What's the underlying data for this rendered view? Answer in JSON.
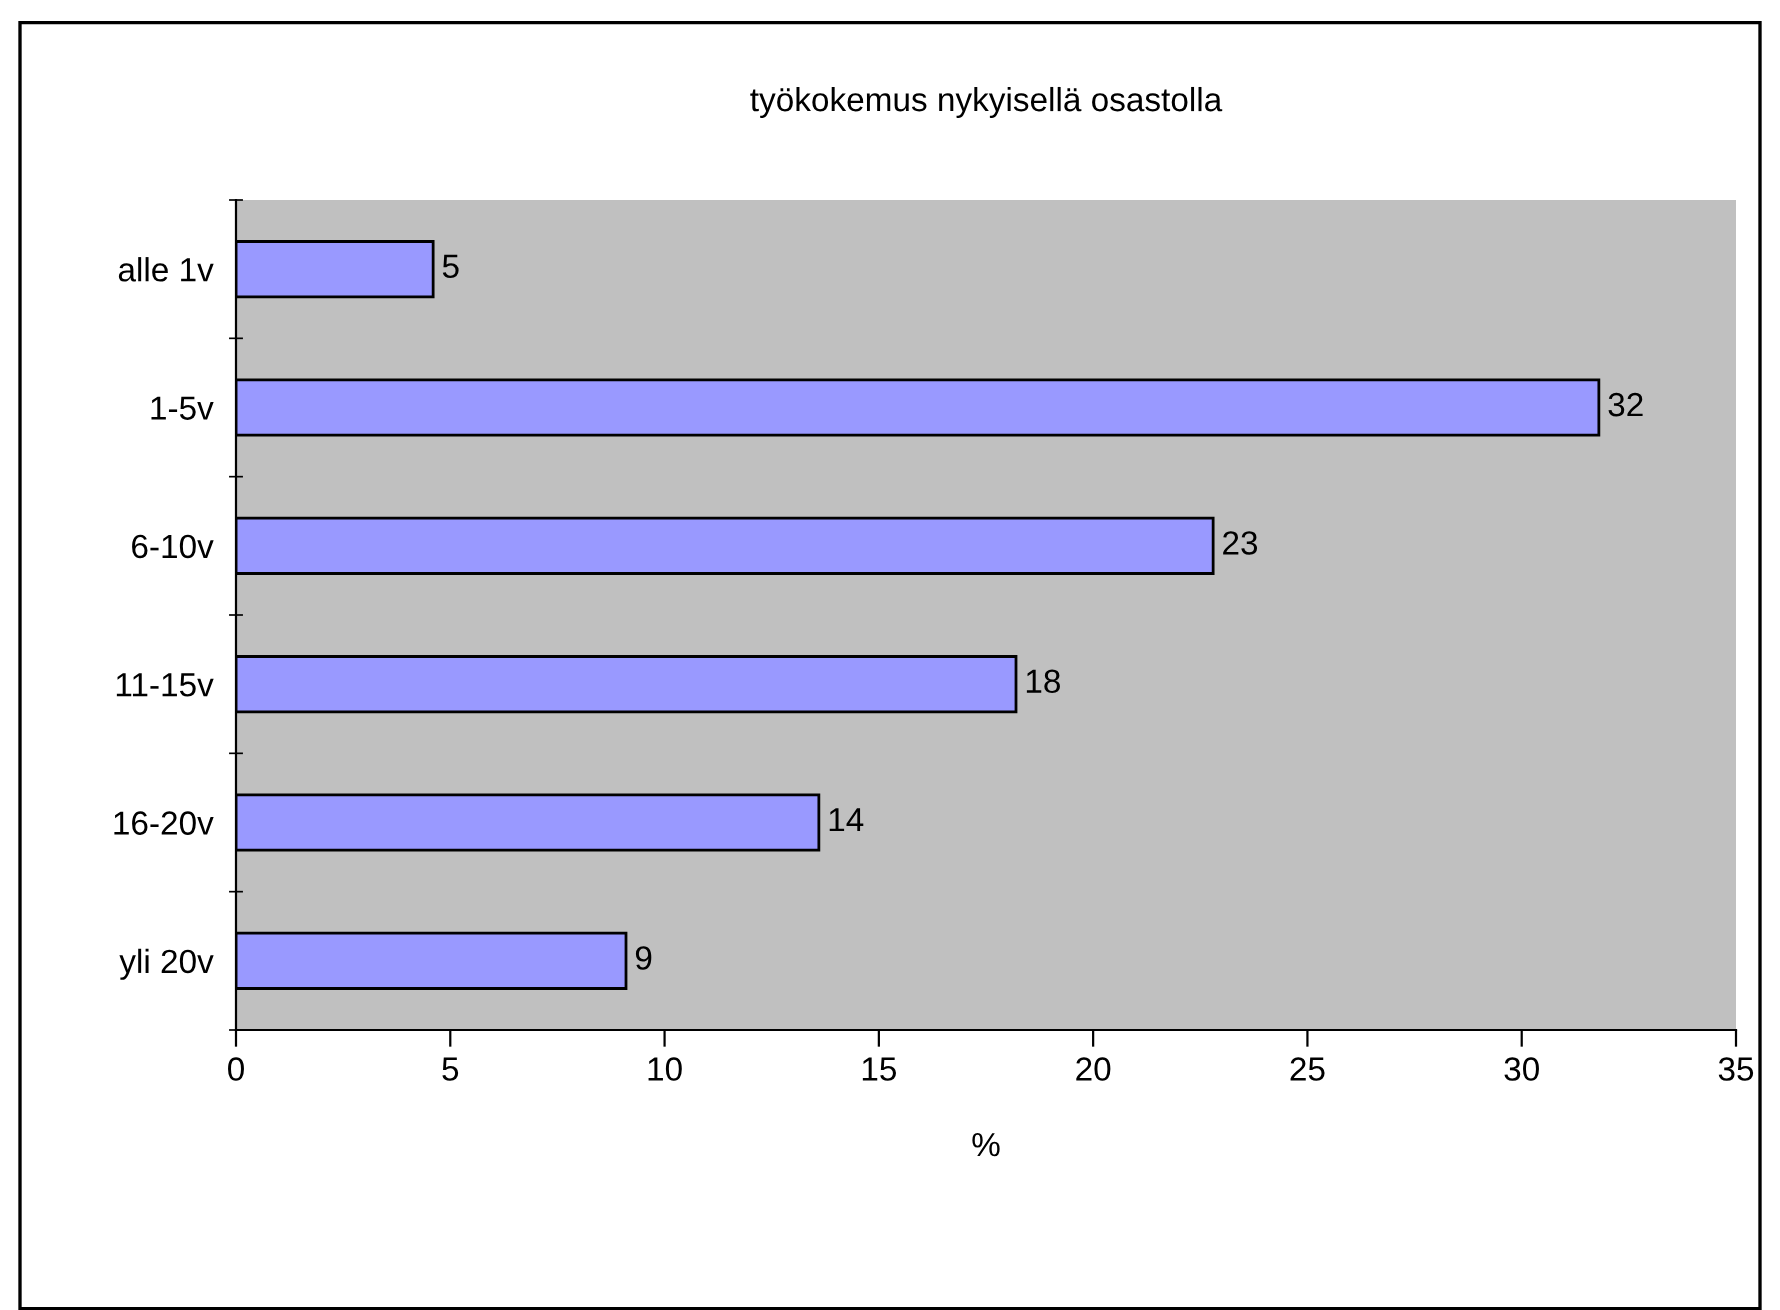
{
  "chart_data": {
    "type": "bar",
    "orientation": "horizontal",
    "title": "työkokemus nykyisellä osastolla",
    "xlabel": "%",
    "categories": [
      "alle 1v",
      "1-5v",
      "6-10v",
      "11-15v",
      "16-20v",
      "yli 20v"
    ],
    "values": [
      4.6,
      31.8,
      22.8,
      18.2,
      13.6,
      9.1
    ],
    "value_labels": [
      "5",
      "32",
      "23",
      "18",
      "14",
      "9"
    ],
    "color": "#9999ff",
    "xlim": [
      0,
      35
    ],
    "xticks": [
      0,
      5,
      10,
      15,
      20,
      25,
      30,
      35
    ],
    "grid": false,
    "legend": false
  }
}
